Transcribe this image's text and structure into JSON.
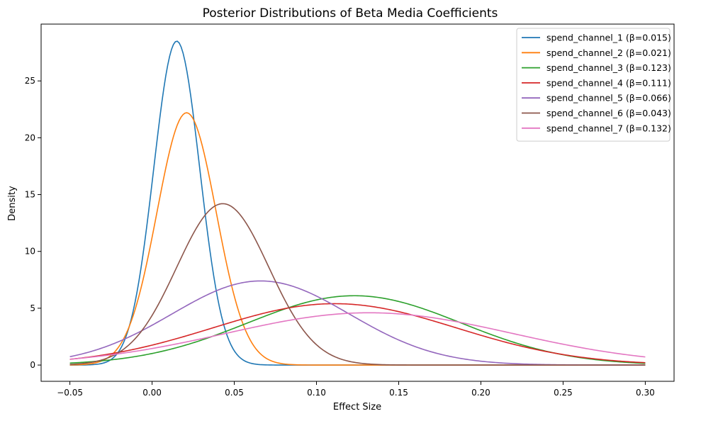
{
  "chart_data": {
    "type": "line",
    "title": "Posterior Distributions of Beta Media Coefficients",
    "xlabel": "Effect Size",
    "ylabel": "Density",
    "xlim": [
      -0.0675,
      0.3175
    ],
    "ylim": [
      -1.43,
      30.0
    ],
    "xticks": [
      -0.05,
      0.0,
      0.05,
      0.1,
      0.15,
      0.2,
      0.25,
      0.3
    ],
    "xtick_labels": [
      "−0.05",
      "0.00",
      "0.05",
      "0.10",
      "0.15",
      "0.20",
      "0.25",
      "0.30"
    ],
    "yticks": [
      0,
      5,
      10,
      15,
      20,
      25
    ],
    "ytick_labels": [
      "0",
      "5",
      "10",
      "15",
      "20",
      "25"
    ],
    "grid": false,
    "legend_position": "top-right",
    "x_range": [
      -0.05,
      0.3
    ],
    "series": [
      {
        "name": "spend_channel_1 (β=0.015)",
        "color": "#1f77b4",
        "mean": 0.015,
        "sd": 0.014,
        "peak_density": 28.5
      },
      {
        "name": "spend_channel_2 (β=0.021)",
        "color": "#ff7f0e",
        "mean": 0.021,
        "sd": 0.018,
        "peak_density": 22.2
      },
      {
        "name": "spend_channel_3 (β=0.123)",
        "color": "#2ca02c",
        "mean": 0.123,
        "sd": 0.065,
        "peak_density": 6.1
      },
      {
        "name": "spend_channel_4 (β=0.111)",
        "color": "#d62728",
        "mean": 0.111,
        "sd": 0.074,
        "peak_density": 5.4
      },
      {
        "name": "spend_channel_5 (β=0.066)",
        "color": "#9467bd",
        "mean": 0.066,
        "sd": 0.054,
        "peak_density": 7.4
      },
      {
        "name": "spend_channel_6 (β=0.043)",
        "color": "#8c564b",
        "mean": 0.043,
        "sd": 0.028,
        "peak_density": 14.2
      },
      {
        "name": "spend_channel_7 (β=0.132)",
        "color": "#e377c2",
        "mean": 0.132,
        "sd": 0.087,
        "peak_density": 4.6
      }
    ]
  }
}
